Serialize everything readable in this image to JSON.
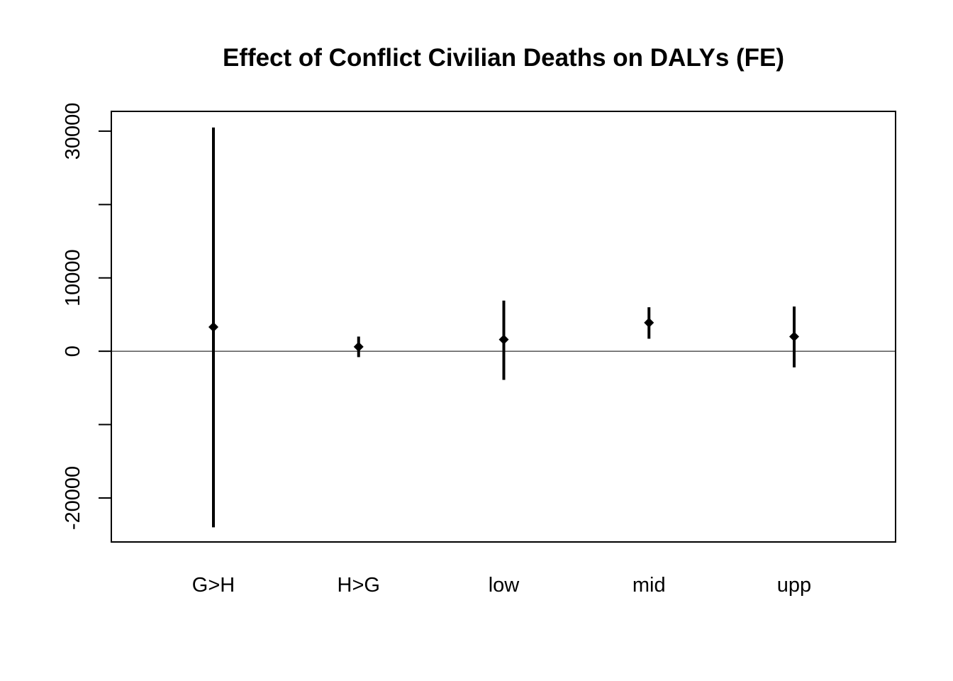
{
  "chart_data": {
    "type": "errorbar",
    "title": "Effect of Conflict Civilian Deaths on DALYs (FE)",
    "xlabel": "",
    "ylabel": "",
    "categories": [
      "G>H",
      "H>G",
      "low",
      "mid",
      "upp"
    ],
    "estimates": [
      3300,
      600,
      1600,
      3900,
      2000
    ],
    "lower": [
      -24000,
      -800,
      -3900,
      1700,
      -2200
    ],
    "upper": [
      30500,
      2000,
      6900,
      6000,
      6100
    ],
    "ylim": [
      -26000,
      32700
    ],
    "yticks": [
      -20000,
      -10000,
      0,
      10000,
      20000,
      30000
    ],
    "ytick_labels": [
      "-20000",
      "",
      "0",
      "10000",
      "",
      "30000"
    ],
    "reference_line": 0,
    "grid": false,
    "legend": "none",
    "colors": {
      "bars": "#000000",
      "points": "#000000",
      "reference_line": "#000000"
    }
  }
}
